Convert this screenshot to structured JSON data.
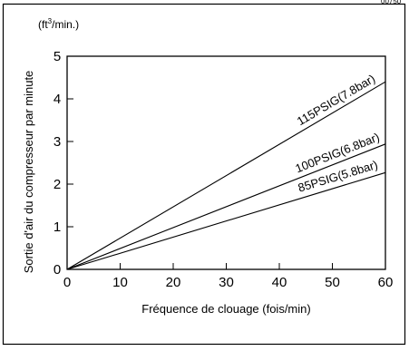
{
  "figure": {
    "corner_code": "00750",
    "y_unit_prefix": "(ft",
    "y_unit_exp": "3",
    "y_unit_suffix": "/min.)"
  },
  "chart_data": {
    "type": "line",
    "title": "",
    "xlabel": "Fréquence de clouage (fois/min)",
    "ylabel": "Sortie d'air du compresseur par minute",
    "xlim": [
      0,
      60
    ],
    "ylim": [
      0,
      5
    ],
    "x_ticks": [
      0,
      10,
      20,
      30,
      40,
      50,
      60
    ],
    "y_ticks": [
      0,
      1,
      2,
      3,
      4,
      5
    ],
    "grid": false,
    "series": [
      {
        "name": "115PSIG(7.8bar)",
        "x": [
          0,
          60
        ],
        "y": [
          0,
          4.4
        ]
      },
      {
        "name": "100PSIG(6.8bar)",
        "x": [
          0,
          60
        ],
        "y": [
          0,
          2.94
        ]
      },
      {
        "name": "85PSIG(5.8bar)",
        "x": [
          0,
          60
        ],
        "y": [
          0,
          2.27
        ]
      }
    ]
  }
}
